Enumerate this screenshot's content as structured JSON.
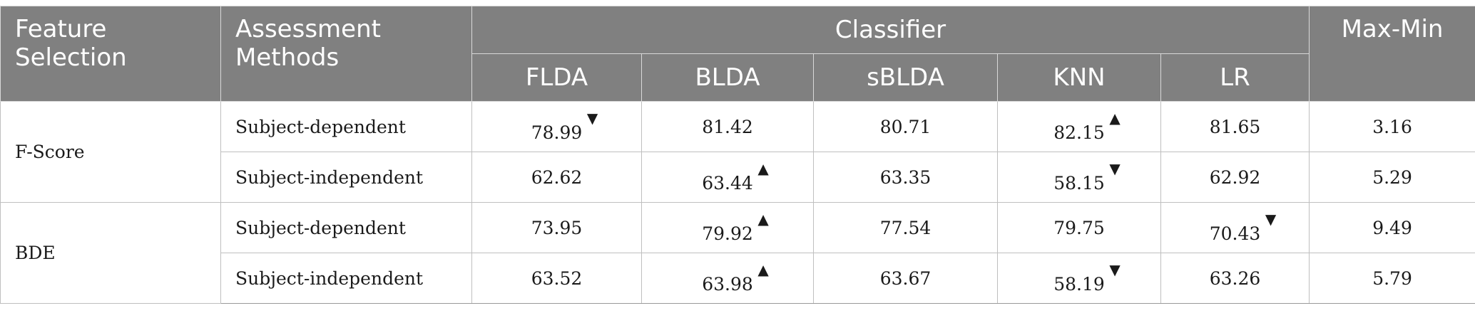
{
  "headers": {
    "feature_selection": "Feature Selection",
    "assessment_methods": "Assessment Methods",
    "classifier": "Classifier",
    "max_min": "Max-Min",
    "classifiers": [
      "FLDA",
      "BLDA",
      "sBLDA",
      "KNN",
      "LR"
    ]
  },
  "rows": [
    {
      "feature": "F-Score",
      "method": "Subject-dependent",
      "values": [
        {
          "v": "78.99",
          "mark": "down"
        },
        {
          "v": "81.42",
          "mark": ""
        },
        {
          "v": "80.71",
          "mark": ""
        },
        {
          "v": "82.15",
          "mark": "up"
        },
        {
          "v": "81.65",
          "mark": ""
        }
      ],
      "maxmin": "3.16"
    },
    {
      "feature": "",
      "method": "Subject-independent",
      "values": [
        {
          "v": "62.62",
          "mark": ""
        },
        {
          "v": "63.44",
          "mark": "up"
        },
        {
          "v": "63.35",
          "mark": ""
        },
        {
          "v": "58.15",
          "mark": "down"
        },
        {
          "v": "62.92",
          "mark": ""
        }
      ],
      "maxmin": "5.29"
    },
    {
      "feature": "BDE",
      "method": "Subject-dependent",
      "values": [
        {
          "v": "73.95",
          "mark": ""
        },
        {
          "v": "79.92",
          "mark": "up"
        },
        {
          "v": "77.54",
          "mark": ""
        },
        {
          "v": "79.75",
          "mark": ""
        },
        {
          "v": "70.43",
          "mark": "down"
        }
      ],
      "maxmin": "9.49"
    },
    {
      "feature": "",
      "method": "Subject-independent",
      "values": [
        {
          "v": "63.52",
          "mark": ""
        },
        {
          "v": "63.98",
          "mark": "up"
        },
        {
          "v": "63.67",
          "mark": ""
        },
        {
          "v": "58.19",
          "mark": "down"
        },
        {
          "v": "63.26",
          "mark": ""
        }
      ],
      "maxmin": "5.79"
    }
  ],
  "icons": {
    "up": "triangle-up-icon",
    "down": "triangle-down-icon"
  }
}
